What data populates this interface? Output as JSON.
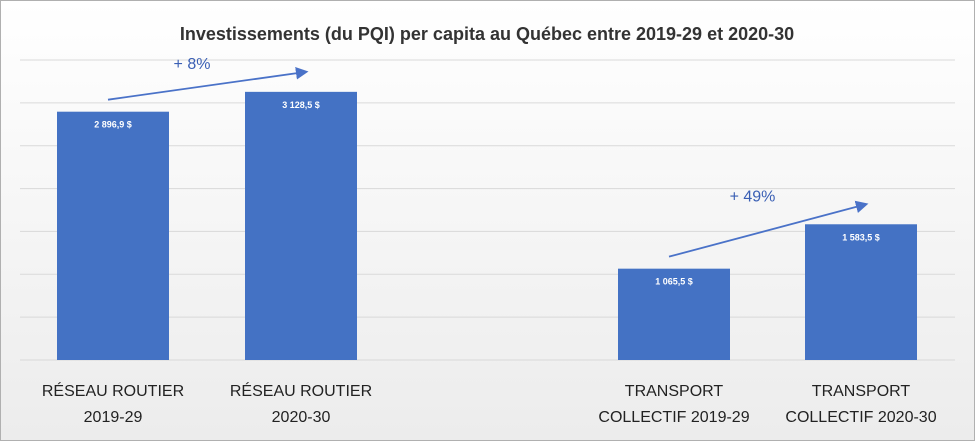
{
  "chart_data": {
    "type": "bar",
    "title": "Investissements  (du PQI) per capita au Québec entre 2019-29 et 2020-30",
    "xlabel": "",
    "ylabel": "",
    "ylim": [
      0,
      3500
    ],
    "grid": true,
    "legend": "none",
    "categories": [
      {
        "line1": "RÉSEAU ROUTIER",
        "line2": "2019-29"
      },
      {
        "line1": "RÉSEAU ROUTIER",
        "line2": "2020-30"
      },
      {
        "line1": "TRANSPORT",
        "line2": "COLLECTIF 2019-29"
      },
      {
        "line1": "TRANSPORT",
        "line2": "COLLECTIF 2020-30"
      }
    ],
    "values": [
      2896.9,
      3128.5,
      1065.5,
      1583.5
    ],
    "data_labels": [
      "2 896,9  $",
      "3 128,5  $",
      "1 065,5  $",
      "1 583,5  $"
    ],
    "annotations": [
      {
        "text": "+ 8%",
        "from_bar": 0,
        "to_bar": 1
      },
      {
        "text": "+ 49%",
        "from_bar": 2,
        "to_bar": 3
      }
    ],
    "colors": {
      "bar": "#4472c4",
      "arrow": "#4a72c8",
      "annotation_text": "#3a5fb4",
      "title": "#333333",
      "category_text": "#222222",
      "data_label": "#ffffff",
      "grid": "#d9d9d9",
      "background_light": "#ffffff",
      "background_dark": "#ececec",
      "border": "#b0b0b0"
    }
  }
}
